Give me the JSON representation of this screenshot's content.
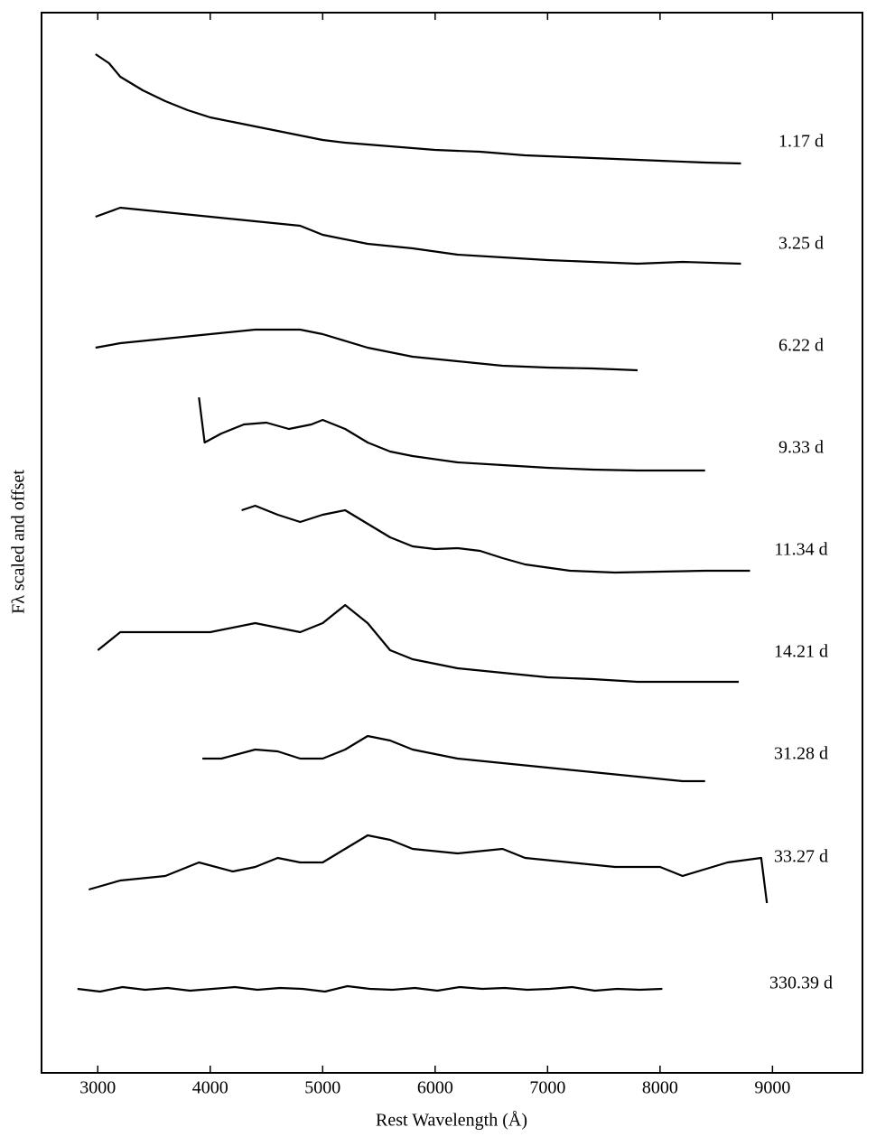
{
  "chart_data": {
    "type": "line",
    "xlabel": "Rest Wavelength (Å)",
    "ylabel": "Fλ scaled and offset",
    "xlim": [
      2500,
      9800
    ],
    "ylim": [
      0,
      1174
    ],
    "xticks": [
      3000,
      4000,
      5000,
      6000,
      7000,
      8000,
      9000
    ],
    "color": "#000000",
    "series": [
      {
        "name": "1.17 d",
        "x": [
          2980,
          3100,
          3200,
          3400,
          3600,
          3800,
          4000,
          4200,
          4400,
          4600,
          4800,
          5000,
          5200,
          5400,
          5600,
          5800,
          6000,
          6400,
          6800,
          7200,
          7600,
          8000,
          8400,
          8720
        ],
        "values": [
          1128,
          1118,
          1103,
          1088,
          1076,
          1066,
          1058,
          1053,
          1048,
          1043,
          1038,
          1033,
          1030,
          1028,
          1026,
          1024,
          1022,
          1020,
          1016,
          1014,
          1012,
          1010,
          1008,
          1007
        ]
      },
      {
        "name": "3.25 d",
        "x": [
          2980,
          3200,
          3600,
          4000,
          4400,
          4800,
          5000,
          5400,
          5800,
          6200,
          6600,
          7000,
          7400,
          7800,
          8200,
          8720
        ],
        "values": [
          948,
          958,
          953,
          948,
          943,
          938,
          928,
          918,
          913,
          906,
          903,
          900,
          898,
          896,
          898,
          896
        ]
      },
      {
        "name": "6.22 d",
        "x": [
          2980,
          3200,
          3600,
          4000,
          4400,
          4800,
          5000,
          5400,
          5800,
          6200,
          6600,
          7000,
          7400,
          7800
        ],
        "values": [
          803,
          808,
          813,
          818,
          823,
          823,
          818,
          803,
          793,
          788,
          783,
          781,
          780,
          778
        ]
      },
      {
        "name": "9.33 d",
        "x": [
          3900,
          3950,
          4100,
          4300,
          4500,
          4700,
          4900,
          5000,
          5200,
          5400,
          5600,
          5800,
          6200,
          6600,
          7000,
          7400,
          7800,
          8200,
          8400
        ],
        "values": [
          748,
          698,
          708,
          718,
          720,
          713,
          718,
          723,
          713,
          698,
          688,
          683,
          676,
          673,
          670,
          668,
          667,
          667,
          667
        ]
      },
      {
        "name": "11.34 d",
        "x": [
          4280,
          4400,
          4600,
          4800,
          5000,
          5200,
          5400,
          5600,
          5800,
          6000,
          6200,
          6400,
          6600,
          6800,
          7200,
          7600,
          8000,
          8400,
          8800
        ],
        "values": [
          623,
          628,
          618,
          610,
          618,
          623,
          608,
          593,
          583,
          580,
          581,
          578,
          570,
          563,
          556,
          554,
          555,
          556,
          556
        ]
      },
      {
        "name": "14.21 d",
        "x": [
          3000,
          3200,
          3600,
          4000,
          4400,
          4800,
          5000,
          5200,
          5400,
          5600,
          5800,
          6200,
          6600,
          7000,
          7400,
          7800,
          8200,
          8700
        ],
        "values": [
          468,
          488,
          488,
          488,
          498,
          488,
          498,
          518,
          498,
          468,
          458,
          448,
          443,
          438,
          436,
          433,
          433,
          433
        ]
      },
      {
        "name": "31.28 d",
        "x": [
          3930,
          4100,
          4400,
          4600,
          4800,
          5000,
          5200,
          5400,
          5600,
          5800,
          6200,
          6600,
          7000,
          7400,
          7800,
          8200,
          8400
        ],
        "values": [
          348,
          348,
          358,
          356,
          348,
          348,
          358,
          373,
          368,
          358,
          348,
          343,
          338,
          333,
          328,
          323,
          323
        ]
      },
      {
        "name": "33.27 d",
        "x": [
          2920,
          3200,
          3600,
          3800,
          3900,
          4200,
          4400,
          4600,
          4800,
          5000,
          5200,
          5400,
          5600,
          5800,
          6200,
          6600,
          6800,
          7200,
          7600,
          8000,
          8200,
          8600,
          8900,
          8950
        ],
        "values": [
          203,
          213,
          218,
          228,
          233,
          223,
          228,
          238,
          233,
          233,
          248,
          263,
          258,
          248,
          243,
          248,
          238,
          233,
          228,
          228,
          218,
          233,
          238,
          188
        ]
      },
      {
        "name": "330.39 d",
        "x": [
          2820,
          3020,
          3220,
          3420,
          3620,
          3820,
          4020,
          4220,
          4420,
          4620,
          4820,
          5020,
          5220,
          5420,
          5620,
          5820,
          6020,
          6220,
          6420,
          6620,
          6820,
          7020,
          7220,
          7420,
          7620,
          7820,
          8020
        ],
        "values": [
          93,
          90,
          95,
          92,
          94,
          91,
          93,
          95,
          92,
          94,
          93,
          90,
          96,
          93,
          92,
          94,
          91,
          95,
          93,
          94,
          92,
          93,
          95,
          91,
          93,
          92,
          93
        ]
      }
    ]
  }
}
